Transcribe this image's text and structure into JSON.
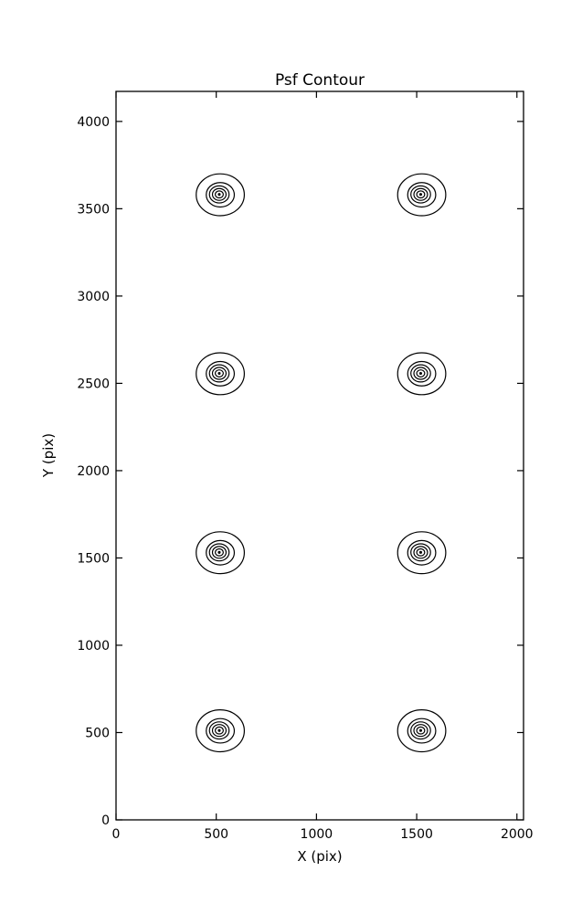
{
  "chart_data": {
    "type": "contour",
    "title": "Psf Contour",
    "xlabel": "X (pix)",
    "ylabel": "Y (pix)",
    "xlim": [
      0,
      2033
    ],
    "ylim": [
      0,
      4172
    ],
    "xticks": [
      0,
      500,
      1000,
      1500,
      2000
    ],
    "yticks": [
      0,
      500,
      1000,
      1500,
      2000,
      2500,
      3000,
      3500,
      4000
    ],
    "grid": false,
    "legend": "none",
    "line_color": "#000000",
    "background_color": "#ffffff",
    "clusters": [
      {
        "center": [
          520,
          510
        ]
      },
      {
        "center": [
          1525,
          510
        ]
      },
      {
        "center": [
          520,
          1530
        ]
      },
      {
        "center": [
          1525,
          1530
        ]
      },
      {
        "center": [
          520,
          2555
        ]
      },
      {
        "center": [
          1525,
          2555
        ]
      },
      {
        "center": [
          520,
          3580
        ]
      },
      {
        "center": [
          1525,
          3580
        ]
      }
    ],
    "ring_radii_pix": [
      120,
      70,
      49,
      34,
      20
    ],
    "center_dot_radius_pix": 7,
    "inner_offset_pix": [
      -5,
      2
    ]
  }
}
